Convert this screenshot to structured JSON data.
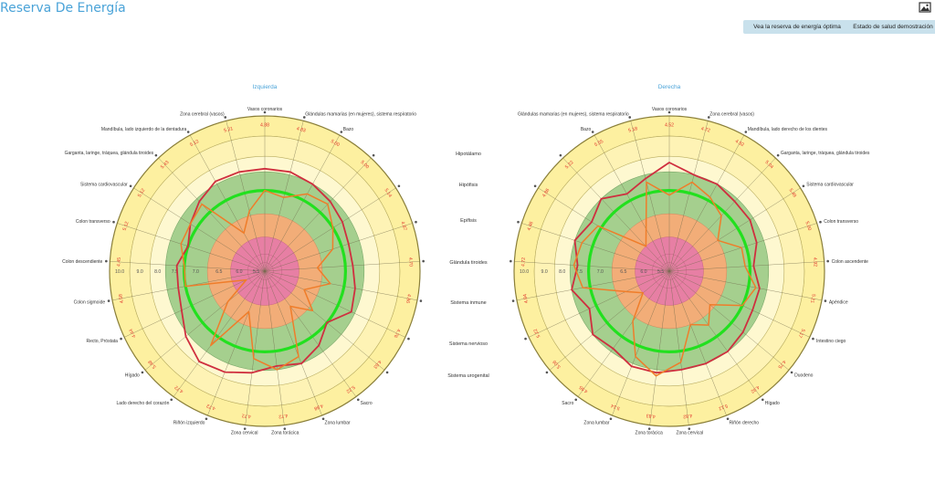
{
  "page": {
    "title": "Reserva De Energía",
    "buttons": {
      "optimal": "Vea la reserva de energía óptima",
      "demo": "Estado de salud demostración"
    },
    "image_icon": "image-icon"
  },
  "middle_labels": [
    "Hipotálamo",
    "Hipófisis",
    "Epífisis",
    "Glándula tiroides",
    "Sistema inmune",
    "Sistema nervioso",
    "Sistema urogenital"
  ],
  "colors": {
    "outer_band": "#fdf0a0",
    "light_band": "#fef8d0",
    "green_band": "#a5cf8e",
    "orange_band": "#f2ad78",
    "pink_core": "#e77fa4",
    "optimal_line": "#22e01f",
    "current_series": "#cf2f3f",
    "demo_series": "#ef7d2a",
    "title_blue": "#4aa3d8"
  },
  "chart_data": [
    {
      "type": "radar",
      "title": "Izquierda",
      "ring_labels": [
        "10.0",
        "9.0",
        "8.0",
        "7.5",
        "7.0",
        "6.5",
        "6.0",
        "5.5"
      ],
      "categories": [
        {
          "label": "Vasos coronarios",
          "value": "4.88"
        },
        {
          "label": "Glándulas mamarias (en mujeres), sistema respiratorio",
          "value": "4.83"
        },
        {
          "label": "Bazo",
          "value": "5.00"
        },
        {
          "label": "",
          "value": "5.00"
        },
        {
          "label": "",
          "value": "5.14"
        },
        {
          "label": "",
          "value": "4.87"
        },
        {
          "label": "",
          "value": "4.70"
        },
        {
          "label": "",
          "value": "4.86"
        },
        {
          "label": "",
          "value": "4.76"
        },
        {
          "label": "",
          "value": "4.63"
        },
        {
          "label": "Sacro",
          "value": "5.22"
        },
        {
          "label": "Zona lumbar",
          "value": "4.88"
        },
        {
          "label": "Zona torácica",
          "value": "4.72"
        },
        {
          "label": "Zona cervical",
          "value": "4.72"
        },
        {
          "label": "Riñón izquierdo",
          "value": "4.72"
        },
        {
          "label": "Lado derecho del corazón",
          "value": "4.72"
        },
        {
          "label": "Hígado",
          "value": "5.48"
        },
        {
          "label": "Recto, Próstata",
          "value": "4.44"
        },
        {
          "label": "Colon sigmoide",
          "value": "4.58"
        },
        {
          "label": "Colon descendiente",
          "value": "4.45"
        },
        {
          "label": "Colon transverso",
          "value": "5.12"
        },
        {
          "label": "Sistema cardiovascular",
          "value": "5.12"
        },
        {
          "label": "Garganta, laringe, tráquea, glándula tiroides",
          "value": "5.43"
        },
        {
          "label": "Mandíbula, lado izquierdo de la dentadura",
          "value": "5.12"
        },
        {
          "label": "Zona cerebral (vasos)",
          "value": "5.21"
        }
      ],
      "series": [
        {
          "name": "",
          "values": [
            7.6,
            7.6,
            7.5,
            7.4,
            7.3,
            7.2,
            7.2,
            7.3,
            7.4,
            7.0,
            7.3,
            7.5,
            7.4,
            7.6,
            7.8,
            7.9,
            7.6,
            7.3,
            7.2,
            7.2,
            7.0,
            7.2,
            7.4,
            7.6,
            7.6
          ]
        },
        {
          "name": "",
          "values": [
            7.0,
            6.9,
            7.2,
            7.3,
            7.0,
            6.8,
            6.4,
            6.7,
            6.2,
            6.6,
            6.2,
            7.3,
            7.5,
            7.2,
            6.2,
            7.3,
            6.3,
            5.6,
            7.0,
            7.0,
            7.2,
            7.2,
            7.3,
            6.2,
            6.6
          ]
        }
      ]
    },
    {
      "type": "radar",
      "title": "Derecha",
      "ring_labels": [
        "10.0",
        "9.0",
        "8.0",
        "7.5",
        "7.0",
        "6.5",
        "6.0",
        "5.5"
      ],
      "categories": [
        {
          "label": "Vasos coronarios",
          "value": "4.52"
        },
        {
          "label": "Zona cerebral (vasos)",
          "value": "4.72"
        },
        {
          "label": "Mandíbula, lado derecho de los dientes",
          "value": "4.92"
        },
        {
          "label": "Garganta, laringe, tráquea, glándula tiroides",
          "value": "5.04"
        },
        {
          "label": "Sistema cardiovascular",
          "value": "5.48"
        },
        {
          "label": "Colon transverso",
          "value": "5.00"
        },
        {
          "label": "Colon ascendente",
          "value": "4.92"
        },
        {
          "label": "Apéndice",
          "value": "5.21"
        },
        {
          "label": "Intestino ciego",
          "value": "5.17"
        },
        {
          "label": "Duodeno",
          "value": "4.75"
        },
        {
          "label": "Hígado",
          "value": "4.92"
        },
        {
          "label": "Riñón derecho",
          "value": "5.12"
        },
        {
          "label": "Zona cervical",
          "value": "4.82"
        },
        {
          "label": "Zona torácica",
          "value": "4.83"
        },
        {
          "label": "Zona lumbar",
          "value": "5.14"
        },
        {
          "label": "Sacro",
          "value": "4.95"
        },
        {
          "label": "",
          "value": "5.06"
        },
        {
          "label": "",
          "value": "5.22"
        },
        {
          "label": "",
          "value": "4.84"
        },
        {
          "label": "",
          "value": "4.72"
        },
        {
          "label": "",
          "value": "4.46"
        },
        {
          "label": "",
          "value": "4.86"
        },
        {
          "label": "",
          "value": "5.22"
        },
        {
          "label": "Bazo",
          "value": "5.55"
        },
        {
          "label": "Glándulas mamarias (en mujeres), sistema respiratorio",
          "value": "5.18"
        }
      ],
      "series": [
        {
          "name": "",
          "values": [
            7.8,
            7.5,
            7.5,
            7.4,
            7.4,
            7.3,
            7.1,
            7.3,
            7.3,
            7.4,
            7.5,
            7.5,
            7.5,
            7.6,
            7.6,
            7.4,
            7.5,
            7.2,
            7.5,
            7.3,
            7.5,
            7.3,
            7.5,
            7.2,
            7.4
          ]
        },
        {
          "name": "",
          "values": [
            6.9,
            7.3,
            7.1,
            6.9,
            6.5,
            6.9,
            6.9,
            7.2,
            7.0,
            6.4,
            6.7,
            6.5,
            7.3,
            7.7,
            7.3,
            6.6,
            6.0,
            6.3,
            7.2,
            7.4,
            7.3,
            7.1,
            6.0,
            6.3,
            7.3
          ]
        }
      ]
    }
  ]
}
